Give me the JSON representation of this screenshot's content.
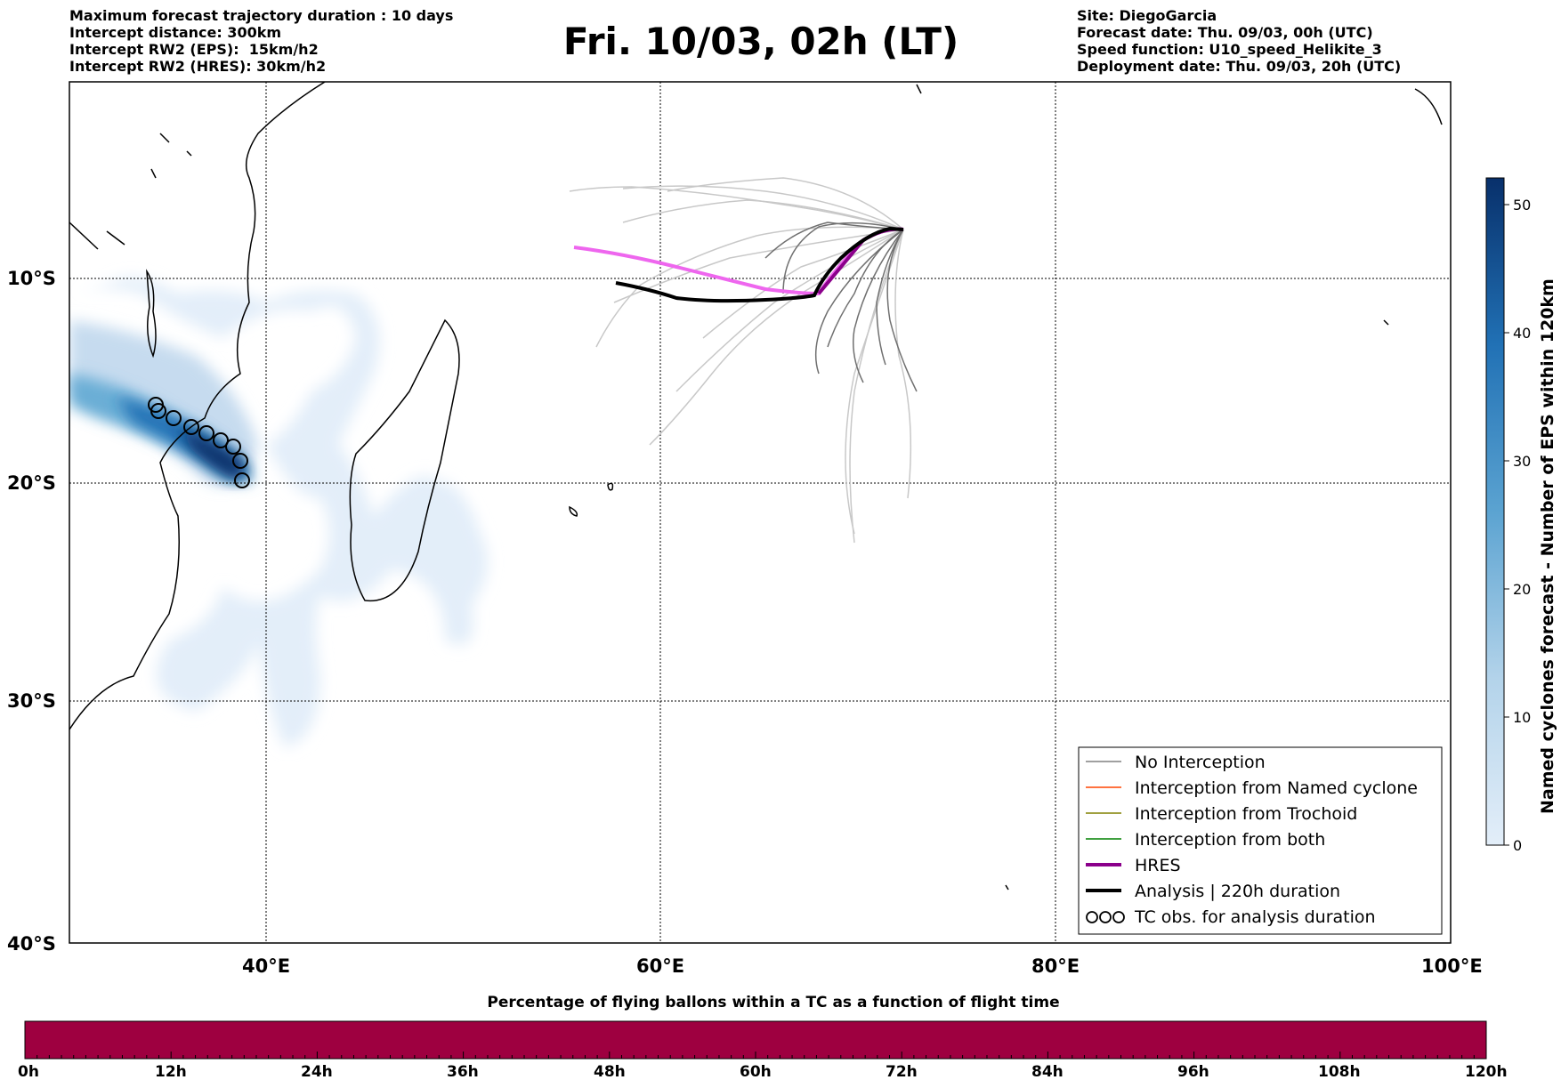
{
  "header_left": {
    "line1": "Maximum forecast trajectory duration : 10 days",
    "line2": "Intercept distance: 300km",
    "line3": "Intercept RW2 (EPS):  15km/h2",
    "line4": "Intercept RW2 (HRES): 30km/h2"
  },
  "title": "Fri. 10/03, 02h (LT)",
  "header_right": {
    "line1": "Site: DiegoGarcia",
    "line2": "Forecast date: Thu. 09/03, 00h (UTC)",
    "line3": "Speed function: U10_speed_Helikite_3",
    "line4": "Deployment date: Thu. 09/03, 20h (UTC)"
  },
  "map": {
    "lat_labels": [
      "10°S",
      "20°S",
      "30°S",
      "40°S"
    ],
    "lon_labels": [
      "40°E",
      "60°E",
      "80°E",
      "100°E"
    ]
  },
  "colorbar": {
    "title": "Named cyclones forecast - Number of EPS within 120km",
    "ticks": [
      "0",
      "10",
      "20",
      "30",
      "40",
      "50"
    ],
    "colors": [
      "#e3eef9",
      "#08306b"
    ]
  },
  "legend": {
    "items": [
      {
        "label": "No Interception",
        "color": "#808080"
      },
      {
        "label": "Interception from Named cyclone",
        "color": "#ff4500"
      },
      {
        "label": "Interception from Trochoid",
        "color": "#808000"
      },
      {
        "label": "Interception from both",
        "color": "#008000"
      },
      {
        "label": "HRES",
        "color": "#8b008b"
      },
      {
        "label": "Analysis | 220h duration",
        "color": "#000000"
      },
      {
        "label": "TC obs. for analysis duration",
        "color": "#000000"
      }
    ]
  },
  "bottom_bar": {
    "title": "Percentage of flying ballons within a TC as a function of flight time",
    "color": "#9e0040",
    "ticks": [
      "0h",
      "12h",
      "24h",
      "36h",
      "48h",
      "60h",
      "72h",
      "84h",
      "96h",
      "108h",
      "120h"
    ]
  }
}
